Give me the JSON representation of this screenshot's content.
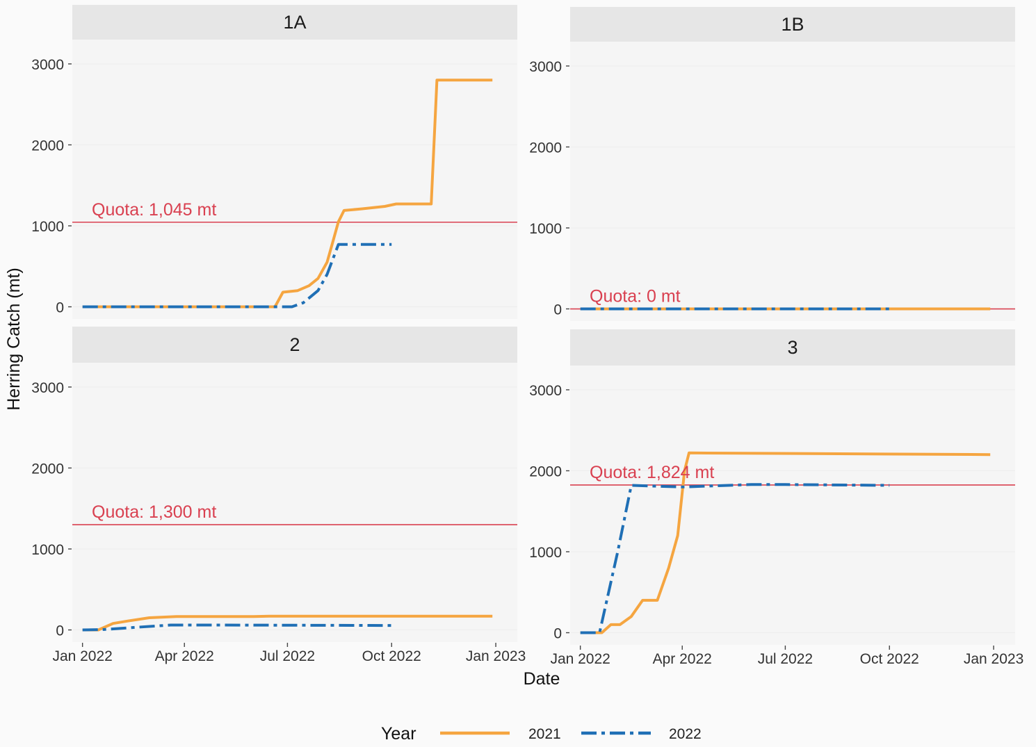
{
  "chart_data": {
    "type": "line",
    "xlabel": "Date",
    "ylabel": "Herring Catch (mt)",
    "x_ticks": [
      "Jan 2022",
      "Apr 2022",
      "Jul 2022",
      "Oct 2022",
      "Jan 2023"
    ],
    "x_range": [
      "2021-12-23",
      "2023-01-20"
    ],
    "y_ticks": [
      0,
      1000,
      2000,
      3000
    ],
    "y_range": [
      -150,
      3300
    ],
    "grid": true,
    "legend": {
      "title": "Year",
      "position": "bottom",
      "entries": [
        {
          "label": "2021",
          "color": "#f5a540",
          "dash": "solid"
        },
        {
          "label": "2022",
          "color": "#1f6fb5",
          "dash": "dashdot"
        }
      ]
    },
    "quota_color": "#d94050",
    "panels": [
      {
        "name": "1A",
        "quota": 1045,
        "quota_label": "Quota: 1,045 mt",
        "series": [
          {
            "name": "2021",
            "points": [
              [
                "2022-01-01",
                0
              ],
              [
                "2022-06-20",
                0
              ],
              [
                "2022-06-27",
                180
              ],
              [
                "2022-07-10",
                200
              ],
              [
                "2022-07-20",
                260
              ],
              [
                "2022-07-28",
                350
              ],
              [
                "2022-08-05",
                550
              ],
              [
                "2022-08-10",
                800
              ],
              [
                "2022-08-15",
                1050
              ],
              [
                "2022-08-20",
                1190
              ],
              [
                "2022-09-05",
                1210
              ],
              [
                "2022-09-25",
                1240
              ],
              [
                "2022-10-05",
                1270
              ],
              [
                "2022-11-05",
                1270
              ],
              [
                "2022-11-10",
                2800
              ],
              [
                "2022-12-29",
                2800
              ]
            ]
          },
          {
            "name": "2022",
            "points": [
              [
                "2022-01-01",
                0
              ],
              [
                "2022-07-05",
                0
              ],
              [
                "2022-07-15",
                50
              ],
              [
                "2022-07-28",
                200
              ],
              [
                "2022-08-05",
                400
              ],
              [
                "2022-08-15",
                770
              ],
              [
                "2022-10-01",
                770
              ]
            ]
          }
        ]
      },
      {
        "name": "1B",
        "quota": 0,
        "quota_label": "Quota:     0 mt",
        "series": [
          {
            "name": "2021",
            "points": [
              [
                "2022-01-01",
                0
              ],
              [
                "2022-12-29",
                0
              ]
            ]
          },
          {
            "name": "2022",
            "points": [
              [
                "2022-01-01",
                0
              ],
              [
                "2022-10-01",
                0
              ]
            ]
          }
        ]
      },
      {
        "name": "2",
        "quota": 1300,
        "quota_label": "Quota: 1,300 mt",
        "series": [
          {
            "name": "2021",
            "points": [
              [
                "2022-01-01",
                0
              ],
              [
                "2022-01-15",
                0
              ],
              [
                "2022-01-28",
                80
              ],
              [
                "2022-02-10",
                110
              ],
              [
                "2022-03-01",
                150
              ],
              [
                "2022-03-25",
                165
              ],
              [
                "2022-06-01",
                165
              ],
              [
                "2022-06-15",
                170
              ],
              [
                "2022-12-29",
                170
              ]
            ]
          },
          {
            "name": "2022",
            "points": [
              [
                "2022-01-01",
                0
              ],
              [
                "2022-01-20",
                5
              ],
              [
                "2022-02-15",
                30
              ],
              [
                "2022-03-20",
                60
              ],
              [
                "2022-05-01",
                60
              ],
              [
                "2022-10-01",
                55
              ]
            ]
          }
        ]
      },
      {
        "name": "3",
        "quota": 1824,
        "quota_label": "Quota: 1,824 mt",
        "series": [
          {
            "name": "2021",
            "points": [
              [
                "2022-01-01",
                0
              ],
              [
                "2022-01-20",
                0
              ],
              [
                "2022-01-28",
                100
              ],
              [
                "2022-02-05",
                100
              ],
              [
                "2022-02-15",
                200
              ],
              [
                "2022-02-25",
                400
              ],
              [
                "2022-03-10",
                400
              ],
              [
                "2022-03-20",
                800
              ],
              [
                "2022-03-28",
                1200
              ],
              [
                "2022-04-03",
                2000
              ],
              [
                "2022-04-07",
                2220
              ],
              [
                "2022-12-29",
                2200
              ]
            ]
          },
          {
            "name": "2022",
            "points": [
              [
                "2022-01-01",
                0
              ],
              [
                "2022-01-18",
                0
              ],
              [
                "2022-02-03",
                1000
              ],
              [
                "2022-02-15",
                1820
              ],
              [
                "2022-04-01",
                1800
              ],
              [
                "2022-06-01",
                1830
              ],
              [
                "2022-07-01",
                1830
              ],
              [
                "2022-10-01",
                1820
              ]
            ]
          }
        ]
      }
    ]
  }
}
